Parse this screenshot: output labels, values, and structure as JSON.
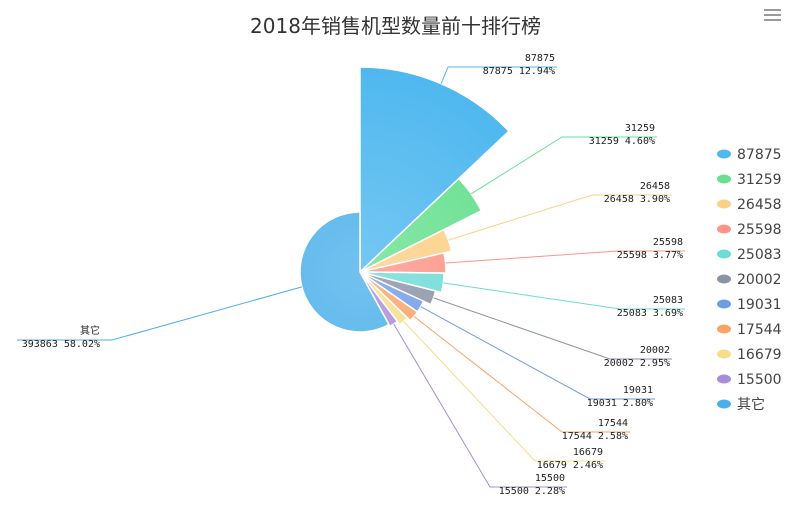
{
  "toolbox": {
    "menu_icon": "hamburger-menu-icon"
  },
  "chart_data": {
    "type": "pie",
    "title": "2018年销售机型数量前十排行榜",
    "legend_position": "right",
    "slices": [
      {
        "name": "87875",
        "value": 87875,
        "percent": "12.94%",
        "color": "#4fb8ef"
      },
      {
        "name": "31259",
        "value": 31259,
        "percent": "4.60%",
        "color": "#67e08f"
      },
      {
        "name": "26458",
        "value": 26458,
        "percent": "3.90%",
        "color": "#fdcf85"
      },
      {
        "name": "25598",
        "value": 25598,
        "percent": "3.77%",
        "color": "#fe9488"
      },
      {
        "name": "25083",
        "value": 25083,
        "percent": "3.69%",
        "color": "#6ddbd6"
      },
      {
        "name": "20002",
        "value": 20002,
        "percent": "2.95%",
        "color": "#8a92a7"
      },
      {
        "name": "19031",
        "value": 19031,
        "percent": "2.80%",
        "color": "#6e9be6"
      },
      {
        "name": "17544",
        "value": 17544,
        "percent": "2.58%",
        "color": "#fba264"
      },
      {
        "name": "16679",
        "value": 16679,
        "percent": "2.46%",
        "color": "#f7dc8a"
      },
      {
        "name": "15500",
        "value": 15500,
        "percent": "2.28%",
        "color": "#a88bd9"
      },
      {
        "name": "其它",
        "value": 393863,
        "percent": "58.02%",
        "color": "#4ab0ea"
      }
    ]
  }
}
